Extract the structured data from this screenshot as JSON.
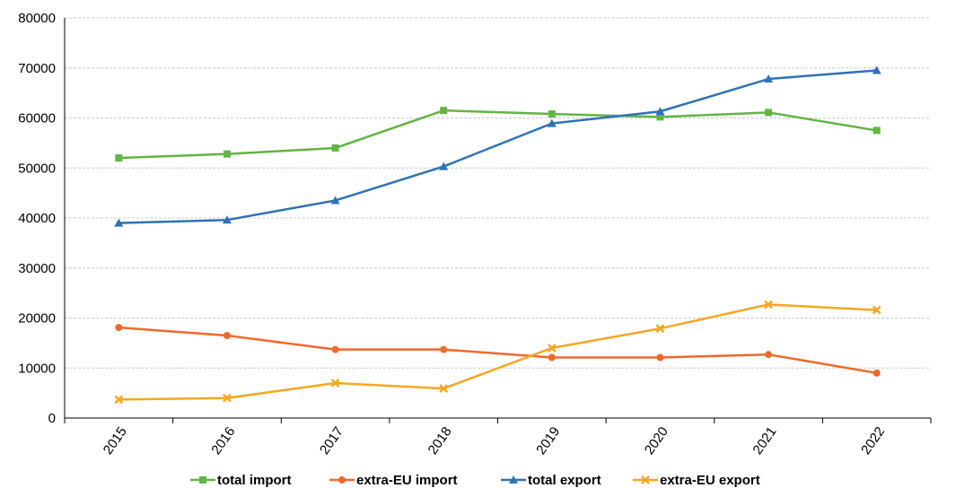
{
  "chart_data": {
    "type": "line",
    "title": "",
    "xlabel": "",
    "ylabel": "",
    "x": [
      "2015",
      "2016",
      "2017",
      "2018",
      "2019",
      "2020",
      "2021",
      "2022"
    ],
    "ylim": [
      0,
      80000
    ],
    "yticks": [
      "0",
      "10000",
      "20000",
      "30000",
      "40000",
      "50000",
      "60000",
      "70000",
      "80000"
    ],
    "grid": "horizontal dashed",
    "legend_position": "bottom",
    "series": [
      {
        "name": "total import",
        "color": "#62b445",
        "marker": "square",
        "values": [
          52000,
          52800,
          54000,
          61500,
          60800,
          60200,
          61100,
          57500
        ]
      },
      {
        "name": "extra-EU import",
        "color": "#ec6a2c",
        "marker": "circle",
        "values": [
          18100,
          16500,
          13700,
          13700,
          12100,
          12100,
          12700,
          9000
        ]
      },
      {
        "name": "total export",
        "color": "#2f72b4",
        "marker": "triangle",
        "values": [
          39000,
          39600,
          43500,
          50300,
          58900,
          61300,
          67800,
          69500
        ]
      },
      {
        "name": "extra-EU export",
        "color": "#f5a623",
        "marker": "x",
        "values": [
          3700,
          4000,
          7000,
          5900,
          14000,
          17900,
          22700,
          21600
        ]
      }
    ]
  }
}
